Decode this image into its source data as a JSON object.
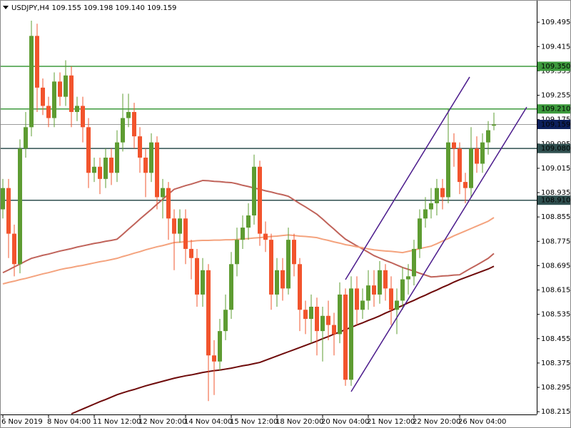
{
  "chart_data": {
    "type": "candlestick",
    "title": "USDJPY,H4  109.155 109.198 109.140 109.159",
    "categories": [
      "6 Nov 2019",
      null,
      null,
      null,
      null,
      null,
      null,
      null,
      "8 Nov 04:00",
      null,
      null,
      null,
      null,
      null,
      null,
      null,
      "11 Nov 12:00",
      null,
      null,
      null,
      null,
      null,
      null,
      null,
      "12 Nov 20:00",
      null,
      null,
      null,
      null,
      null,
      null,
      null,
      "14 Nov 04:00",
      null,
      null,
      null,
      null,
      null,
      null,
      null,
      "15 Nov 12:00",
      null,
      null,
      null,
      null,
      null,
      null,
      null,
      "18 Nov 20:00",
      null,
      null,
      null,
      null,
      null,
      null,
      null,
      "20 Nov 04:00",
      null,
      null,
      null,
      null,
      null,
      null,
      null,
      "21 Nov 12:00",
      null,
      null,
      null,
      null,
      null,
      null,
      null,
      "22 Nov 20:00",
      null,
      null,
      null,
      null,
      null,
      null,
      null,
      "26 Nov 04:00",
      null,
      null,
      null,
      null,
      null,
      null
    ],
    "open": [
      108.88,
      108.95,
      108.8,
      108.7,
      109.08,
      109.15,
      109.45,
      109.28,
      109.22,
      109.18,
      109.3,
      109.25,
      109.32,
      109.2,
      109.22,
      109.15,
      109.0,
      109.02,
      108.98,
      109.05,
      109.0,
      109.1,
      109.18,
      109.2,
      109.12,
      109.05,
      109.0,
      109.1,
      108.92,
      108.95,
      108.85,
      108.8,
      108.85,
      108.75,
      108.72,
      108.6,
      108.68,
      108.4,
      108.38,
      108.48,
      108.55,
      108.7,
      108.78,
      108.82,
      108.86,
      109.02,
      108.8,
      108.78,
      108.6,
      108.68,
      108.62,
      108.78,
      108.7,
      108.55,
      108.52,
      108.56,
      108.48,
      108.53,
      108.5,
      108.47,
      108.6,
      108.32,
      108.62,
      108.55,
      108.58,
      108.63,
      108.6,
      108.68,
      108.62,
      108.55,
      108.58,
      108.65,
      108.66,
      108.75,
      108.85,
      108.88,
      108.9,
      108.95,
      108.92,
      109.1,
      109.08,
      108.97,
      108.95,
      109.08,
      109.03,
      109.1,
      109.155
    ],
    "high": [
      108.98,
      108.98,
      108.83,
      109.11,
      109.2,
      109.5,
      109.49,
      109.31,
      109.25,
      109.33,
      109.33,
      109.37,
      109.35,
      109.25,
      109.25,
      109.18,
      109.05,
      109.05,
      109.08,
      109.08,
      109.14,
      109.26,
      109.26,
      109.23,
      109.15,
      109.08,
      109.13,
      109.12,
      108.98,
      108.97,
      108.88,
      108.88,
      108.88,
      108.78,
      108.75,
      108.72,
      108.7,
      108.45,
      108.52,
      108.6,
      108.74,
      108.82,
      108.86,
      108.9,
      109.06,
      109.04,
      108.84,
      108.8,
      108.72,
      108.72,
      108.82,
      108.8,
      108.72,
      108.58,
      108.6,
      108.59,
      108.56,
      108.58,
      108.54,
      108.64,
      108.62,
      108.66,
      108.66,
      108.62,
      108.68,
      108.68,
      108.71,
      108.7,
      108.66,
      108.62,
      108.69,
      108.7,
      108.78,
      108.88,
      108.92,
      108.95,
      108.98,
      108.98,
      109.21,
      109.13,
      109.1,
      109.0,
      109.15,
      109.12,
      109.13,
      109.17,
      109.198
    ],
    "low": [
      108.85,
      108.72,
      108.66,
      108.67,
      109.05,
      109.12,
      109.2,
      109.19,
      109.15,
      109.15,
      109.22,
      109.22,
      109.15,
      109.17,
      109.1,
      108.95,
      108.97,
      108.93,
      108.95,
      108.96,
      108.97,
      109.07,
      109.15,
      109.08,
      109.0,
      108.92,
      108.97,
      108.88,
      108.85,
      108.78,
      108.68,
      108.77,
      108.7,
      108.65,
      108.56,
      108.56,
      108.25,
      108.27,
      108.35,
      108.45,
      108.52,
      108.66,
      108.75,
      108.78,
      108.83,
      108.76,
      108.74,
      108.55,
      108.56,
      108.58,
      108.6,
      108.66,
      108.48,
      108.47,
      108.44,
      108.4,
      108.38,
      108.45,
      108.4,
      108.44,
      108.3,
      108.3,
      108.5,
      108.52,
      108.55,
      108.56,
      108.57,
      108.58,
      108.5,
      108.47,
      108.55,
      108.6,
      108.63,
      108.72,
      108.82,
      108.85,
      108.86,
      108.88,
      108.9,
      109.02,
      108.93,
      108.9,
      108.92,
      109.0,
      109.0,
      109.06,
      109.14
    ],
    "close": [
      108.95,
      108.8,
      108.7,
      109.08,
      109.15,
      109.45,
      109.28,
      109.22,
      109.18,
      109.3,
      109.25,
      109.32,
      109.2,
      109.22,
      109.15,
      109.0,
      109.02,
      108.98,
      109.05,
      109.0,
      109.1,
      109.18,
      109.2,
      109.12,
      109.05,
      109.0,
      109.1,
      108.92,
      108.95,
      108.85,
      108.8,
      108.85,
      108.75,
      108.72,
      108.6,
      108.68,
      108.4,
      108.38,
      108.48,
      108.55,
      108.7,
      108.78,
      108.82,
      108.86,
      109.02,
      108.8,
      108.78,
      108.6,
      108.68,
      108.62,
      108.78,
      108.7,
      108.55,
      108.52,
      108.56,
      108.48,
      108.53,
      108.5,
      108.47,
      108.6,
      108.32,
      108.62,
      108.55,
      108.58,
      108.63,
      108.6,
      108.68,
      108.62,
      108.55,
      108.58,
      108.65,
      108.66,
      108.75,
      108.85,
      108.88,
      108.9,
      108.95,
      108.92,
      109.1,
      109.08,
      108.97,
      108.95,
      109.08,
      109.03,
      109.1,
      109.14,
      109.159
    ],
    "bull_color": "#5e9c32",
    "bear_color": "#f2542d",
    "ylim": [
      108.206,
      109.568
    ],
    "yticks": [
      109.495,
      109.415,
      109.335,
      109.255,
      109.175,
      109.095,
      109.015,
      108.935,
      108.855,
      108.775,
      108.695,
      108.615,
      108.535,
      108.455,
      108.375,
      108.295,
      108.215
    ],
    "moving_averages": [
      {
        "color": "#c0635a",
        "values": [
          108.672,
          108.681,
          108.691,
          108.7,
          108.71,
          108.719,
          108.724,
          108.729,
          108.733,
          108.738,
          108.743,
          108.747,
          108.751,
          108.756,
          108.76,
          108.764,
          108.768,
          108.771,
          108.775,
          108.778,
          108.782,
          108.798,
          108.815,
          108.831,
          108.848,
          108.864,
          108.88,
          108.897,
          108.913,
          108.93,
          108.946,
          108.952,
          108.958,
          108.963,
          108.969,
          108.975,
          108.974,
          108.972,
          108.971,
          108.969,
          108.968,
          108.964,
          108.959,
          108.955,
          108.95,
          108.946,
          108.941,
          108.937,
          108.932,
          108.928,
          108.923,
          108.911,
          108.899,
          108.888,
          108.876,
          108.864,
          108.848,
          108.831,
          108.815,
          108.798,
          108.782,
          108.771,
          108.76,
          108.75,
          108.739,
          108.728,
          108.72,
          108.712,
          108.705,
          108.697,
          108.689,
          108.683,
          108.677,
          108.67,
          108.664,
          108.658,
          108.659,
          108.661,
          108.662,
          108.664,
          108.665,
          108.676,
          108.687,
          108.697,
          108.708,
          108.719,
          108.735
        ]
      },
      {
        "color": "#f4a37e",
        "values": [
          108.635,
          108.64,
          108.644,
          108.649,
          108.653,
          108.658,
          108.663,
          108.668,
          108.672,
          108.677,
          108.682,
          108.686,
          108.689,
          108.693,
          108.696,
          108.7,
          108.704,
          108.708,
          108.711,
          108.715,
          108.719,
          108.725,
          108.73,
          108.736,
          108.741,
          108.747,
          108.752,
          108.757,
          108.761,
          108.766,
          108.771,
          108.772,
          108.774,
          108.775,
          108.777,
          108.778,
          108.778,
          108.779,
          108.779,
          108.78,
          108.78,
          108.781,
          108.783,
          108.784,
          108.786,
          108.787,
          108.789,
          108.791,
          108.792,
          108.794,
          108.796,
          108.794,
          108.792,
          108.791,
          108.789,
          108.787,
          108.782,
          108.778,
          108.773,
          108.769,
          108.764,
          108.761,
          108.757,
          108.754,
          108.75,
          108.747,
          108.745,
          108.743,
          108.742,
          108.74,
          108.738,
          108.742,
          108.746,
          108.751,
          108.755,
          108.759,
          108.767,
          108.776,
          108.784,
          108.793,
          108.801,
          108.809,
          108.817,
          108.825,
          108.833,
          108.841,
          108.853
        ]
      },
      {
        "color": "#6e0a0a",
        "values": [
          null,
          null,
          null,
          null,
          null,
          null,
          null,
          null,
          null,
          null,
          null,
          null,
          108.208,
          108.216,
          108.224,
          108.232,
          108.24,
          108.248,
          108.255,
          108.263,
          108.271,
          108.277,
          108.283,
          108.288,
          108.294,
          108.3,
          108.305,
          108.31,
          108.315,
          108.32,
          108.325,
          108.329,
          108.333,
          108.336,
          108.34,
          108.344,
          108.347,
          108.35,
          108.352,
          108.355,
          108.358,
          108.362,
          108.366,
          108.369,
          108.373,
          108.377,
          108.384,
          108.391,
          108.398,
          108.405,
          108.412,
          108.419,
          108.426,
          108.433,
          108.44,
          108.447,
          108.455,
          108.462,
          108.47,
          108.477,
          108.485,
          108.492,
          108.5,
          108.507,
          108.515,
          108.522,
          108.53,
          108.539,
          108.547,
          108.556,
          108.564,
          108.573,
          108.581,
          108.59,
          108.598,
          108.607,
          108.615,
          108.624,
          108.632,
          108.641,
          108.649,
          108.656,
          108.663,
          108.67,
          108.677,
          108.684,
          108.693
        ]
      }
    ],
    "trendlines": [
      {
        "color": "#4b1b8c",
        "x": [
          60,
          81.75
        ],
        "values": [
          108.649,
          109.315
        ]
      },
      {
        "color": "#4b1b8c",
        "x": [
          61,
          91.75
        ],
        "values": [
          108.281,
          109.216
        ]
      }
    ],
    "levels": [
      {
        "price": {
          "value": 109.35,
          "label": "109.350"
        },
        "color": "#3d9a3d",
        "text_color": "#ffffff"
      },
      {
        "price": {
          "value": 109.21,
          "label": "109.210"
        },
        "color": "#3d9a3d",
        "text_color": "#ffffff"
      },
      {
        "price": {
          "value": 109.08,
          "label": "109.080"
        },
        "color": "#2f4f4f",
        "text_color": "#ffffff"
      },
      {
        "price": {
          "value": 108.91,
          "label": "108.910"
        },
        "color": "#2f4f4f",
        "text_color": "#ffffff"
      },
      {
        "price": 109.159,
        "color": "#9a9a9a",
        "box_color": "#0c1f5c",
        "text_color": "#ffffff"
      }
    ]
  }
}
